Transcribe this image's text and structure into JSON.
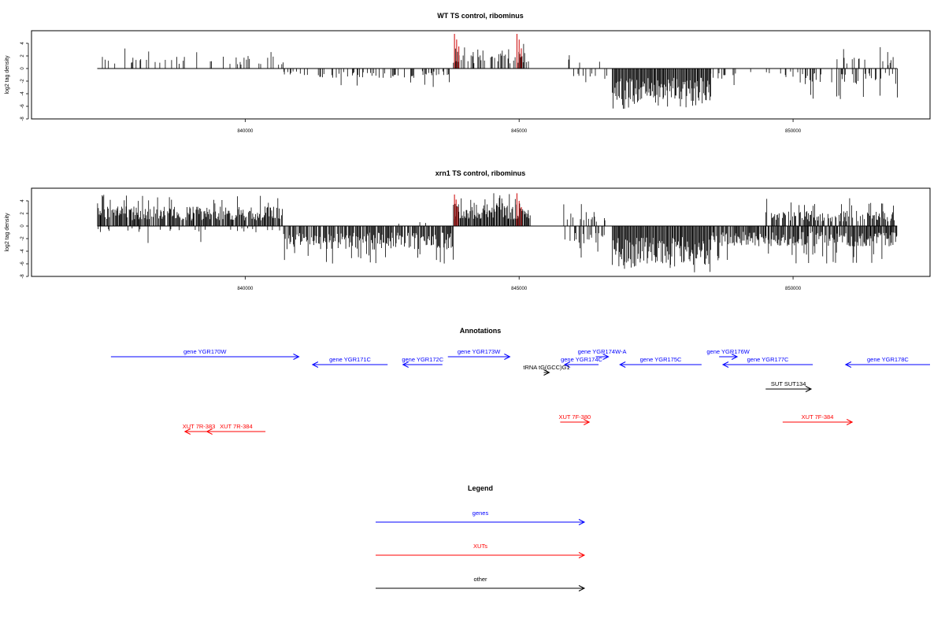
{
  "colors": {
    "plus_strand": "#000000",
    "highlight": "#cc0000",
    "genes": "#0000ff",
    "xuts": "#ff0000",
    "other": "#000000"
  },
  "chart_data": [
    {
      "type": "bar",
      "title": "WT TS control, ribominus",
      "ylabel": "log2 tag density",
      "xlim": [
        836100,
        852500
      ],
      "ylim": [
        -8,
        6
      ],
      "yticks": [
        -8,
        -6,
        -4,
        -2,
        0,
        2,
        4
      ],
      "xticks": [
        840000,
        845000,
        850000
      ],
      "xtick_labels": [
        "840000",
        "845000",
        "850000"
      ],
      "baseline_range": [
        837300,
        851900
      ],
      "density_segments": [
        {
          "from": 837300,
          "to": 840700,
          "sign": 1,
          "max": 3.5,
          "mean": 1.6,
          "density": 0.22
        },
        {
          "from": 840700,
          "to": 843800,
          "sign": -1,
          "max": 3.0,
          "mean": 1.2,
          "density": 0.3
        },
        {
          "from": 843800,
          "to": 845200,
          "sign": 1,
          "max": 4.0,
          "mean": 2.2,
          "density": 0.55
        },
        {
          "from": 845800,
          "to": 846600,
          "sign": 1,
          "max": 2.6,
          "mean": 1.2,
          "density": 0.08
        },
        {
          "from": 845800,
          "to": 846600,
          "sign": -1,
          "max": 3.0,
          "mean": 1.4,
          "density": 0.1
        },
        {
          "from": 846700,
          "to": 848500,
          "sign": -1,
          "max": 6.5,
          "mean": 4.2,
          "density": 1.0
        },
        {
          "from": 848500,
          "to": 850100,
          "sign": -1,
          "max": 3.0,
          "mean": 1.3,
          "density": 0.18
        },
        {
          "from": 850100,
          "to": 851900,
          "sign": -1,
          "max": 5.0,
          "mean": 2.0,
          "density": 0.35
        },
        {
          "from": 850800,
          "to": 851900,
          "sign": 1,
          "max": 3.5,
          "mean": 1.5,
          "density": 0.15
        }
      ],
      "highlight_spikes": [
        {
          "x": 843820,
          "y": 5.5
        },
        {
          "x": 843860,
          "y": 4.6
        },
        {
          "x": 843900,
          "y": 3.5
        },
        {
          "x": 844960,
          "y": 5.5
        },
        {
          "x": 845000,
          "y": 4.6
        },
        {
          "x": 845040,
          "y": 3.2
        }
      ]
    },
    {
      "type": "bar",
      "title": "xrn1 TS control, ribominus",
      "ylabel": "log2 tag density",
      "xlim": [
        836100,
        852500
      ],
      "ylim": [
        -8,
        6
      ],
      "yticks": [
        -8,
        -6,
        -4,
        -2,
        0,
        2,
        4
      ],
      "xticks": [
        840000,
        845000,
        850000
      ],
      "xtick_labels": [
        "840000",
        "845000",
        "850000"
      ],
      "baseline_range": [
        837300,
        851900
      ],
      "density_segments": [
        {
          "from": 837300,
          "to": 840700,
          "sign": 1,
          "max": 5.0,
          "mean": 2.5,
          "density": 0.9
        },
        {
          "from": 837300,
          "to": 840700,
          "sign": -1,
          "max": 3.0,
          "mean": 0.8,
          "density": 0.12
        },
        {
          "from": 840700,
          "to": 843800,
          "sign": -1,
          "max": 6.0,
          "mean": 3.0,
          "density": 0.85
        },
        {
          "from": 842800,
          "to": 843600,
          "sign": 1,
          "max": 2.5,
          "mean": 1.0,
          "density": 0.05
        },
        {
          "from": 843800,
          "to": 845200,
          "sign": 1,
          "max": 5.2,
          "mean": 3.0,
          "density": 1.0
        },
        {
          "from": 845800,
          "to": 846600,
          "sign": 1,
          "max": 3.5,
          "mean": 1.8,
          "density": 0.25
        },
        {
          "from": 845800,
          "to": 846600,
          "sign": -1,
          "max": 5.0,
          "mean": 2.6,
          "density": 0.5
        },
        {
          "from": 846700,
          "to": 848500,
          "sign": -1,
          "max": 7.5,
          "mean": 5.0,
          "density": 1.0
        },
        {
          "from": 848500,
          "to": 851900,
          "sign": -1,
          "max": 6.0,
          "mean": 2.6,
          "density": 0.9
        },
        {
          "from": 849500,
          "to": 851900,
          "sign": 1,
          "max": 4.5,
          "mean": 2.0,
          "density": 0.6
        }
      ],
      "highlight_spikes": [
        {
          "x": 843820,
          "y": 5.0
        },
        {
          "x": 843850,
          "y": 4.2
        },
        {
          "x": 843880,
          "y": 3.0
        },
        {
          "x": 844960,
          "y": 5.2
        },
        {
          "x": 845000,
          "y": 4.0
        },
        {
          "x": 845040,
          "y": 3.0
        }
      ]
    }
  ],
  "annotations": {
    "title": "Annotations",
    "features": [
      {
        "label": "gene YGR170W",
        "kind": "gene",
        "strand": "+",
        "start": 837550,
        "end": 840980,
        "row": 0
      },
      {
        "label": "gene YGR171C",
        "kind": "gene",
        "strand": "-",
        "start": 841230,
        "end": 842600,
        "row": 1
      },
      {
        "label": "gene YGR172C",
        "kind": "gene",
        "strand": "-",
        "start": 842880,
        "end": 843600,
        "row": 1
      },
      {
        "label": "gene YGR173W",
        "kind": "gene",
        "strand": "+",
        "start": 843700,
        "end": 844830,
        "row": 0
      },
      {
        "label": "gene YGR174C",
        "kind": "gene",
        "strand": "-",
        "start": 845830,
        "end": 846450,
        "row": 1
      },
      {
        "label": "gene YGR174W-A",
        "kind": "gene",
        "strand": "+",
        "start": 846400,
        "end": 846630,
        "row": 0
      },
      {
        "label": "gene YGR175C",
        "kind": "gene",
        "strand": "-",
        "start": 846840,
        "end": 848330,
        "row": 1
      },
      {
        "label": "gene YGR176W",
        "kind": "gene",
        "strand": "+",
        "start": 848650,
        "end": 848980,
        "row": 0
      },
      {
        "label": "gene YGR177C",
        "kind": "gene",
        "strand": "-",
        "start": 848720,
        "end": 850360,
        "row": 1
      },
      {
        "label": "gene YGR178C",
        "kind": "gene",
        "strand": "-",
        "start": 850960,
        "end": 852500,
        "row": 1
      },
      {
        "label": "tRNA tG(GCC)G1",
        "kind": "other",
        "strand": "+",
        "start": 845450,
        "end": 845550,
        "row": 2
      },
      {
        "label": "SUT SUT134",
        "kind": "other",
        "strand": "+",
        "start": 849500,
        "end": 850330,
        "row": 3
      },
      {
        "label": "XUT 7F-380",
        "kind": "xut",
        "strand": "+",
        "start": 845750,
        "end": 846280,
        "row": 4
      },
      {
        "label": "XUT 7F-384",
        "kind": "xut",
        "strand": "+",
        "start": 849810,
        "end": 851080,
        "row": 4
      },
      {
        "label": "XUT 7R-383",
        "kind": "xut",
        "strand": "-",
        "start": 838900,
        "end": 839410,
        "row": 5
      },
      {
        "label": "XUT 7R-384",
        "kind": "xut",
        "strand": "-",
        "start": 839300,
        "end": 840370,
        "row": 5
      }
    ]
  },
  "legend": {
    "title": "Legend",
    "items": [
      {
        "label": "genes",
        "color": "#0000ff"
      },
      {
        "label": "XUTs",
        "color": "#ff0000"
      },
      {
        "label": "other",
        "color": "#000000"
      }
    ]
  }
}
